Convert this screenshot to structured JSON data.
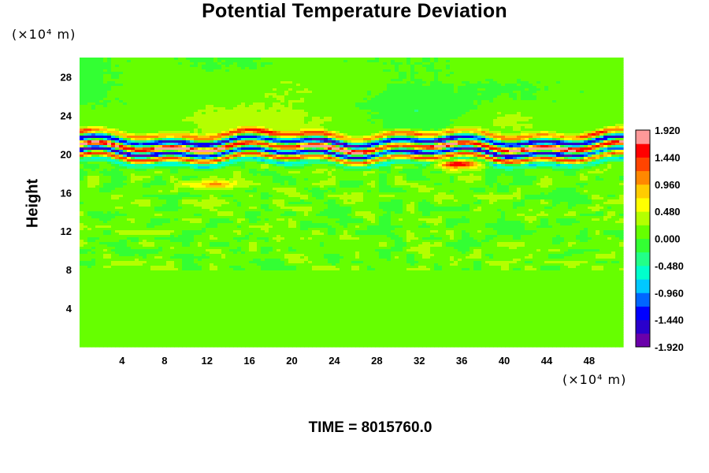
{
  "chart_data": {
    "type": "heatmap",
    "title": "Potential Temperature Deviation",
    "ylabel": "Height",
    "x_unit": "(×10⁴ m)",
    "y_unit": "(×10⁴ m)",
    "xlim": [
      0,
      51.2
    ],
    "ylim": [
      0,
      30
    ],
    "x_ticks": [
      "4",
      "8",
      "12",
      "16",
      "20",
      "24",
      "28",
      "32",
      "36",
      "40",
      "44",
      "48"
    ],
    "y_ticks": [
      "4",
      "8",
      "12",
      "16",
      "20",
      "24",
      "28"
    ],
    "x_tick_values": [
      4,
      8,
      12,
      16,
      20,
      24,
      28,
      32,
      36,
      40,
      44,
      48
    ],
    "y_tick_values": [
      4,
      8,
      12,
      16,
      20,
      24,
      28
    ],
    "colorbar": {
      "range": [
        -1.92,
        1.92
      ],
      "labels": [
        "1.920",
        "1.440",
        "0.960",
        "0.480",
        "0.000",
        "-0.480",
        "-0.960",
        "-1.440",
        "-1.920"
      ],
      "label_values": [
        1.92,
        1.44,
        0.96,
        0.48,
        0.0,
        -0.48,
        -0.96,
        -1.44,
        -1.92
      ],
      "colors": [
        "#6a00aa",
        "#2a00cc",
        "#0000ff",
        "#0066ff",
        "#00c8ff",
        "#00ffcc",
        "#22ff88",
        "#33ff33",
        "#66ff00",
        "#b4ff00",
        "#ffff00",
        "#ffcc00",
        "#ff8800",
        "#ff4400",
        "#ff0000",
        "#ff9999"
      ]
    },
    "field": {
      "background": 0.1,
      "bands": [
        {
          "y": 22.0,
          "amp": 1.2
        },
        {
          "y": 21.3,
          "amp": -1.8
        },
        {
          "y": 20.7,
          "amp": 1.92
        },
        {
          "y": 20.1,
          "amp": -1.92
        },
        {
          "y": 19.6,
          "amp": 1.5
        },
        {
          "y": 19.1,
          "amp": -0.8
        }
      ],
      "hotspots": [
        {
          "x": 35.5,
          "y": 19.0,
          "amp": 1.6
        },
        {
          "x": 12.5,
          "y": 16.8,
          "amp": 0.9
        },
        {
          "x": 31.0,
          "y": 24.5,
          "amp": -0.35
        }
      ]
    }
  },
  "footer": {
    "time_text": "TIME = 8015760.0"
  }
}
